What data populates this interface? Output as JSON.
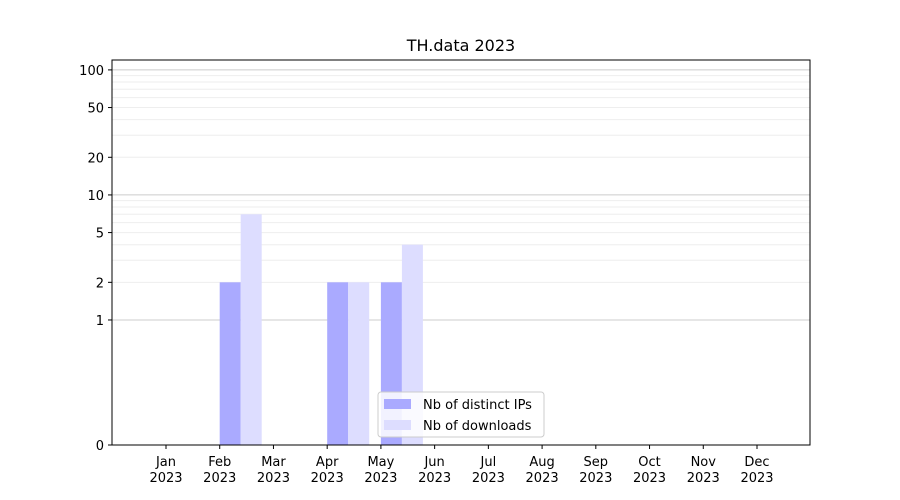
{
  "chart_data": {
    "type": "bar",
    "title": "TH.data 2023",
    "xlabel": "",
    "ylabel": "",
    "y_scale": "symlog",
    "ylim": [
      0,
      120
    ],
    "y_ticks": [
      0,
      1,
      2,
      5,
      10,
      20,
      50,
      100
    ],
    "y_tick_labels": [
      "0",
      "1",
      "2",
      "5",
      "10",
      "20",
      "50",
      "100"
    ],
    "grid": true,
    "legend_position": "bottom-center",
    "categories": [
      [
        "Jan",
        "2023"
      ],
      [
        "Feb",
        "2023"
      ],
      [
        "Mar",
        "2023"
      ],
      [
        "Apr",
        "2023"
      ],
      [
        "May",
        "2023"
      ],
      [
        "Jun",
        "2023"
      ],
      [
        "Jul",
        "2023"
      ],
      [
        "Aug",
        "2023"
      ],
      [
        "Sep",
        "2023"
      ],
      [
        "Oct",
        "2023"
      ],
      [
        "Nov",
        "2023"
      ],
      [
        "Dec",
        "2023"
      ]
    ],
    "series": [
      {
        "name": "Nb of distinct IPs",
        "color": "#aaaaff",
        "values": [
          0,
          2,
          0,
          2,
          2,
          0,
          0,
          0,
          0,
          0,
          0,
          0
        ]
      },
      {
        "name": "Nb of downloads",
        "color": "#ddddff",
        "values": [
          0,
          7,
          0,
          2,
          4,
          0,
          0,
          0,
          0,
          0,
          0,
          0
        ]
      }
    ]
  }
}
